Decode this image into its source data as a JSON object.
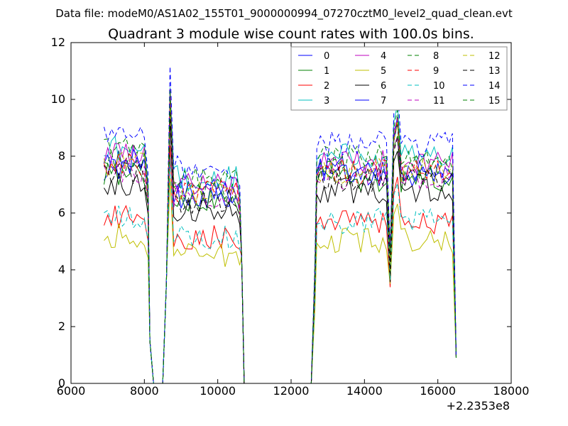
{
  "chart_data": {
    "type": "line",
    "suptitle": "Data file: modeM0/AS1A02_155T01_9000000994_07270cztM0_level2_quad_clean.evt",
    "title": "Quadrant 3 module wise count rates with 100.0s bins.",
    "xlabel": "",
    "ylabel": "",
    "xlim": [
      6000,
      18000
    ],
    "ylim": [
      0,
      12
    ],
    "x_ticks": [
      6000,
      8000,
      10000,
      12000,
      14000,
      16000,
      18000
    ],
    "x_tick_labels": [
      "6000",
      "8000",
      "10000",
      "12000",
      "14000",
      "16000",
      "18000"
    ],
    "y_ticks": [
      0,
      2,
      4,
      6,
      8,
      10,
      12
    ],
    "y_tick_labels": [
      "0",
      "2",
      "4",
      "6",
      "8",
      "10",
      "12"
    ],
    "x_offset_label": "+2.2353e8",
    "legend_position": "top-right",
    "legend_columns": 4,
    "series_note": "Series values are approximate rates read from the figure: rates are ~0 between x≈8300–8500, x≈10750–12550 and after 16500.",
    "series": [
      {
        "name": "0",
        "color": "#0000ff",
        "style": "solid",
        "level": 7.6
      },
      {
        "name": "1",
        "color": "#008000",
        "style": "solid",
        "level": 7.4
      },
      {
        "name": "2",
        "color": "#ff0000",
        "style": "solid",
        "level": 5.9
      },
      {
        "name": "3",
        "color": "#00bfbf",
        "style": "solid",
        "level": 8.3
      },
      {
        "name": "4",
        "color": "#bf00bf",
        "style": "solid",
        "level": 8.0
      },
      {
        "name": "5",
        "color": "#bfbf00",
        "style": "solid",
        "level": 5.2
      },
      {
        "name": "6",
        "color": "#000000",
        "style": "solid",
        "level": 7.0
      },
      {
        "name": "7",
        "color": "#0000ff",
        "style": "solid",
        "level": 7.8
      },
      {
        "name": "8",
        "color": "#008000",
        "style": "dashed",
        "level": 7.8
      },
      {
        "name": "9",
        "color": "#ff0000",
        "style": "dashed",
        "level": 7.7
      },
      {
        "name": "10",
        "color": "#00bfbf",
        "style": "dashed",
        "level": 5.9
      },
      {
        "name": "11",
        "color": "#bf00bf",
        "style": "dashed",
        "level": 7.5
      },
      {
        "name": "12",
        "color": "#bfbf00",
        "style": "dashed",
        "level": 7.7
      },
      {
        "name": "13",
        "color": "#000000",
        "style": "dashed",
        "level": 7.4
      },
      {
        "name": "14",
        "color": "#0000ff",
        "style": "dashed",
        "level": 8.7
      },
      {
        "name": "15",
        "color": "#008000",
        "style": "dashed",
        "level": 8.2
      }
    ]
  }
}
